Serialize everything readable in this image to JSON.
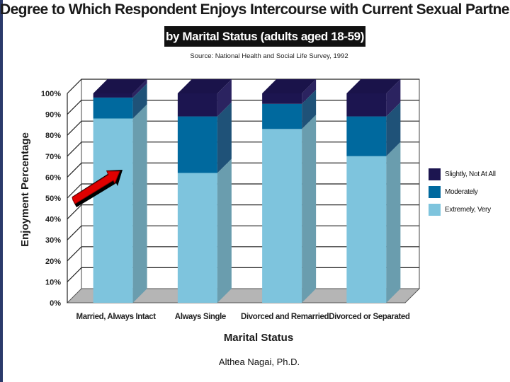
{
  "chart_data": {
    "type": "bar",
    "stacked": true,
    "title": "Degree to Which Respondent Enjoys Intercourse with Current Sexual Partner",
    "subtitle": "by Marital Status (adults aged 18-59)",
    "source": "Source: National Health and Social Life Survey, 1992",
    "xlabel": "Marital Status",
    "ylabel": "Enjoyment Percentage",
    "ylim": [
      0,
      100
    ],
    "yticks": [
      "0%",
      "10%",
      "20%",
      "30%",
      "40%",
      "50%",
      "60%",
      "70%",
      "80%",
      "90%",
      "100%"
    ],
    "categories": [
      "Married, Always Intact",
      "Always Single",
      "Divorced and Remarried",
      "Divorced or Separated"
    ],
    "series": [
      {
        "name": "Extremely, Very",
        "values": [
          88,
          62,
          83,
          70
        ],
        "color": "#7ec4dd",
        "side": "#6a9dae",
        "top": "#a6d9ea"
      },
      {
        "name": "Moderately",
        "values": [
          10,
          27,
          12,
          19
        ],
        "color": "#00699e",
        "side": "#1f5278",
        "top": "#2b86b5"
      },
      {
        "name": "Slightly, Not At All",
        "values": [
          2,
          11,
          5,
          11
        ],
        "color": "#1c1550",
        "side": "#2b2360",
        "top": "#1a134a"
      }
    ],
    "grid": true,
    "legend_position": "right",
    "annotation": "red-arrow"
  },
  "credit": "Althea Nagai, Ph.D."
}
